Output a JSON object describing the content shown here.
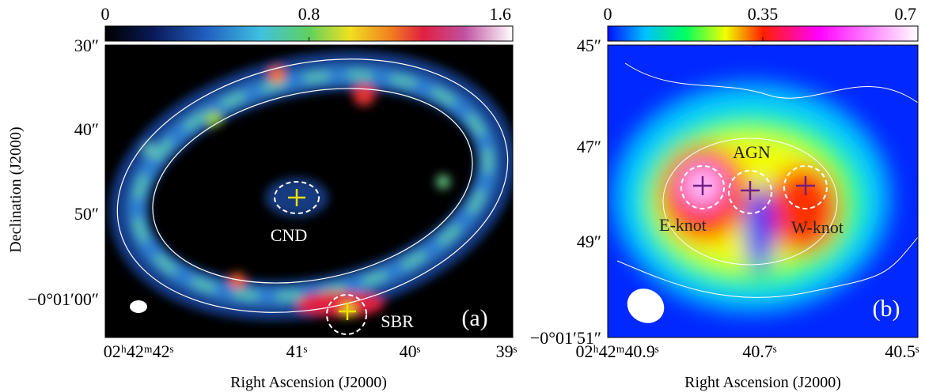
{
  "panels": [
    {
      "label": "(a)",
      "colorbar_ticks": [
        0,
        0.8,
        1.6
      ],
      "yticks": [
        "30″",
        "40″",
        "50″",
        "−0°01′00″"
      ],
      "xticks": [
        "02ʰ42ᵐ42ˢ",
        "41ˢ",
        "40ˢ",
        "39ˢ"
      ],
      "x_label": "Right Ascension (J2000)",
      "y_label": "Declination (J2000)",
      "annotations": [
        "CND",
        "SBR"
      ]
    },
    {
      "label": "(b)",
      "colorbar_ticks": [
        0,
        0.35,
        0.7
      ],
      "yticks": [
        "45″",
        "47″",
        "49″",
        "−0°01′51″"
      ],
      "xticks": [
        "02ʰ42ᵐ40.9ˢ",
        "40.7ˢ",
        "40.5ˢ"
      ],
      "x_label": "Right Ascension (J2000)",
      "annotations": [
        "AGN",
        "E-knot",
        "W-knot"
      ]
    }
  ]
}
